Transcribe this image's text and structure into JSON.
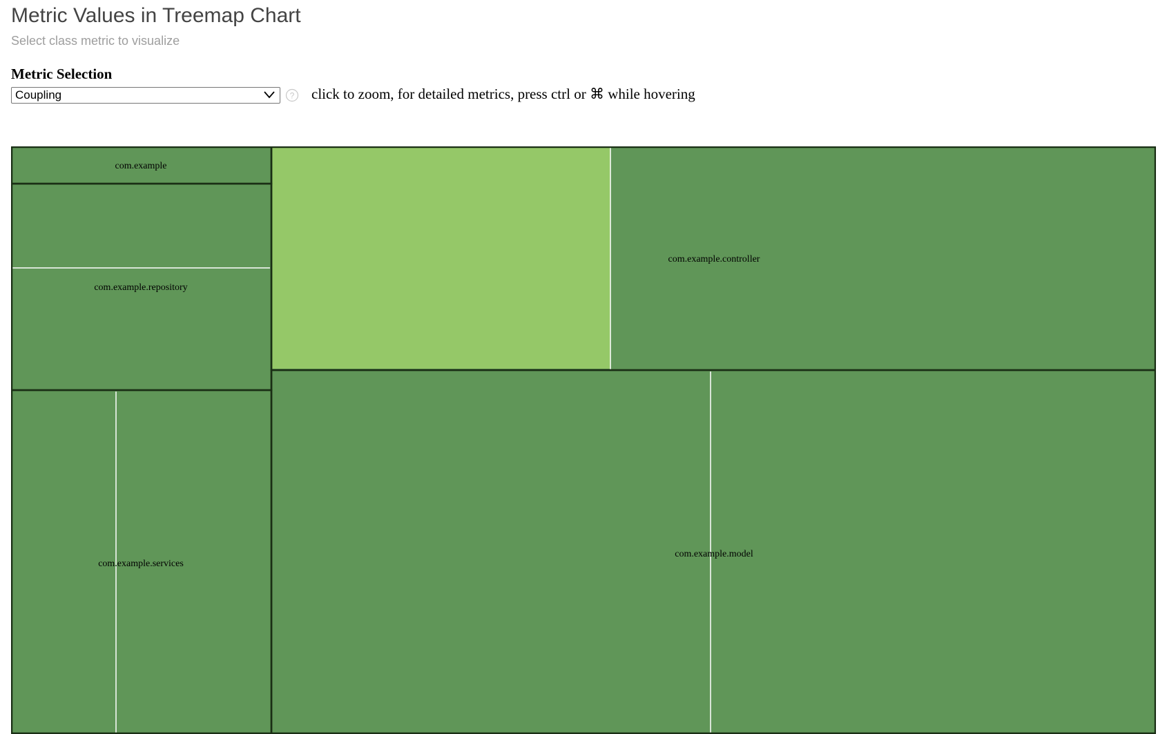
{
  "header": {
    "title": "Metric Values in Treemap Chart",
    "subtitle": "Select class metric to visualize"
  },
  "controls": {
    "section_label": "Metric Selection",
    "metric_select": {
      "selected": "Coupling"
    },
    "help_icon": "question-circle-icon",
    "hint": "click to zoom, for detailed metrics, press ctrl or ⌘ while hovering"
  },
  "colors": {
    "tile_default": "#609658",
    "tile_highlight": "#95c868",
    "package_border": "#1a2e15",
    "class_divider": "#ffffff"
  },
  "treemap": {
    "packages": [
      {
        "label": "com.example"
      },
      {
        "label": "com.example.repository"
      },
      {
        "label": "com.example.services"
      },
      {
        "label": "com.example.controller"
      },
      {
        "label": "com.example.model"
      }
    ]
  }
}
